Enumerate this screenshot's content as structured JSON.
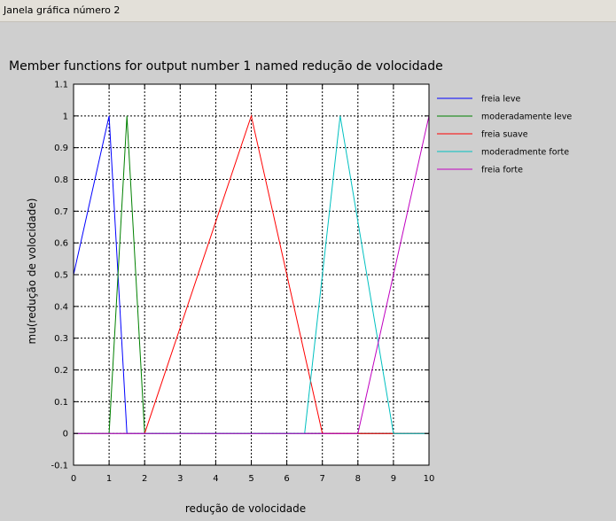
{
  "window": {
    "title": "Janela gráfica número 2"
  },
  "chart_data": {
    "type": "line",
    "title": "Member functions for output number 1 named redução de volocidade",
    "xlabel": "redução de volocidade",
    "ylabel": "mu(redução de volocidade)",
    "xlim": [
      0,
      10
    ],
    "ylim": [
      -0.1,
      1.1
    ],
    "xticks": [
      "0",
      "1",
      "2",
      "3",
      "4",
      "5",
      "6",
      "7",
      "8",
      "9",
      "10"
    ],
    "yticks": [
      "-0.1",
      "0",
      "0.1",
      "0.2",
      "0.3",
      "0.4",
      "0.5",
      "0.6",
      "0.7",
      "0.8",
      "0.9",
      "1",
      "1.1"
    ],
    "grid": true,
    "legend_position": "outside-right",
    "series": [
      {
        "name": "freia leve",
        "color": "#0000ff",
        "x": [
          0,
          1,
          1.5,
          10
        ],
        "y": [
          0.5,
          1,
          0,
          0
        ]
      },
      {
        "name": "moderadamente leve",
        "color": "#008000",
        "x": [
          0,
          1,
          1.5,
          2,
          10
        ],
        "y": [
          0,
          0,
          1,
          0,
          0
        ]
      },
      {
        "name": "freia suave",
        "color": "#ff0000",
        "x": [
          0,
          2,
          5,
          7,
          10
        ],
        "y": [
          0,
          0,
          1,
          0,
          0
        ]
      },
      {
        "name": "moderadmente forte",
        "color": "#00c0c0",
        "x": [
          0,
          6.5,
          7.5,
          9,
          10
        ],
        "y": [
          0,
          0,
          1,
          0,
          0
        ]
      },
      {
        "name": "freia forte",
        "color": "#c000c0",
        "x": [
          0,
          8,
          10
        ],
        "y": [
          0,
          0,
          1
        ]
      }
    ]
  }
}
